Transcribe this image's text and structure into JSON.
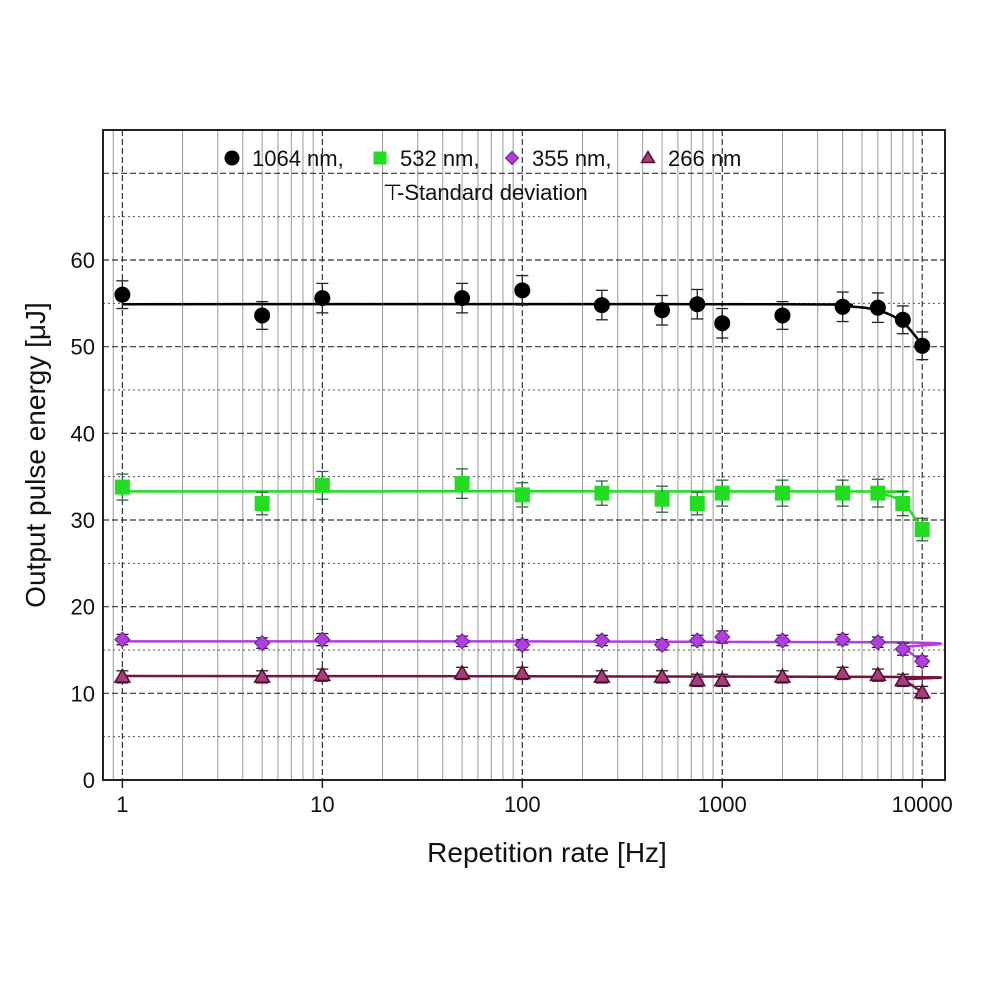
{
  "chart_data": {
    "type": "scatter",
    "title": "",
    "xlabel": "Repetition rate [Hz]",
    "ylabel": "Output pulse energy [μJ]",
    "xscale": "log",
    "xlim": [
      0.8,
      13000
    ],
    "ylim": [
      0,
      75
    ],
    "x_ticks": [
      1,
      10,
      100,
      1000,
      10000
    ],
    "x_tick_labels": [
      "1",
      "10",
      "100",
      "1000",
      "10000"
    ],
    "y_ticks": [
      0,
      10,
      20,
      30,
      40,
      50,
      60
    ],
    "y_tick_labels": [
      "0",
      "10",
      "20",
      "30",
      "40",
      "50",
      "60"
    ],
    "grid": true,
    "legend_position": "top",
    "legend_note": "-Standard deviation",
    "x": [
      1,
      5,
      10,
      50,
      100,
      250,
      500,
      750,
      1000,
      2000,
      4000,
      6000,
      8000,
      10000
    ],
    "series": [
      {
        "name": "1064 nm,",
        "color": "#000000",
        "marker": "circle",
        "values": [
          56.0,
          53.6,
          55.6,
          55.6,
          56.5,
          54.8,
          54.2,
          54.9,
          52.7,
          53.6,
          54.6,
          54.5,
          53.1,
          50.1
        ],
        "std": [
          1.6,
          1.6,
          1.7,
          1.7,
          1.7,
          1.7,
          1.7,
          1.7,
          1.7,
          1.6,
          1.7,
          1.7,
          1.6,
          1.6
        ],
        "fit": [
          [
            1,
            54.9
          ],
          [
            2000,
            54.9
          ],
          [
            4000,
            54.7
          ],
          [
            6000,
            54.2
          ],
          [
            8000,
            52.8
          ],
          [
            10000,
            50.2
          ]
        ]
      },
      {
        "name": "532 nm,",
        "color": "#22dd22",
        "marker": "square",
        "values": [
          33.8,
          31.9,
          34.0,
          34.2,
          32.9,
          33.1,
          32.4,
          31.9,
          33.1,
          33.1,
          33.1,
          33.1,
          31.9,
          28.9
        ],
        "std": [
          1.5,
          1.3,
          1.6,
          1.7,
          1.4,
          1.4,
          1.5,
          1.3,
          1.5,
          1.5,
          1.5,
          1.6,
          1.4,
          1.3
        ],
        "fit": [
          [
            1,
            33.3
          ],
          [
            4000,
            33.3
          ],
          [
            6000,
            33.1
          ],
          [
            8000,
            32.0
          ],
          [
            10000,
            28.9
          ]
        ]
      },
      {
        "name": "355 nm,",
        "color": "#b03ee0",
        "marker": "diamond",
        "values": [
          16.2,
          15.8,
          16.2,
          16.0,
          15.6,
          16.1,
          15.6,
          16.1,
          16.5,
          16.1,
          16.2,
          15.9,
          15.1,
          13.7
        ],
        "std": [
          0.6,
          0.6,
          0.7,
          0.6,
          0.6,
          0.6,
          0.6,
          0.6,
          0.7,
          0.6,
          0.6,
          0.6,
          0.7,
          0.6
        ],
        "fit": [
          [
            1,
            16.0
          ],
          [
            6000,
            15.9
          ],
          [
            8000,
            15.2
          ],
          [
            10000,
            13.6
          ]
        ]
      },
      {
        "name": "266 nm",
        "color": "#a3407a",
        "marker": "triangle",
        "values": [
          11.9,
          11.9,
          12.1,
          12.3,
          12.3,
          11.9,
          11.9,
          11.5,
          11.5,
          11.9,
          12.3,
          12.1,
          11.5,
          10.1
        ],
        "std": [
          0.7,
          0.7,
          0.7,
          0.7,
          0.7,
          0.7,
          0.7,
          0.7,
          0.7,
          0.7,
          0.7,
          0.7,
          0.7,
          0.7
        ],
        "fit": [
          [
            1,
            12.0
          ],
          [
            6000,
            11.9
          ],
          [
            8000,
            11.5
          ],
          [
            10000,
            10.1
          ]
        ],
        "fit_color": "#7a1040"
      }
    ]
  }
}
